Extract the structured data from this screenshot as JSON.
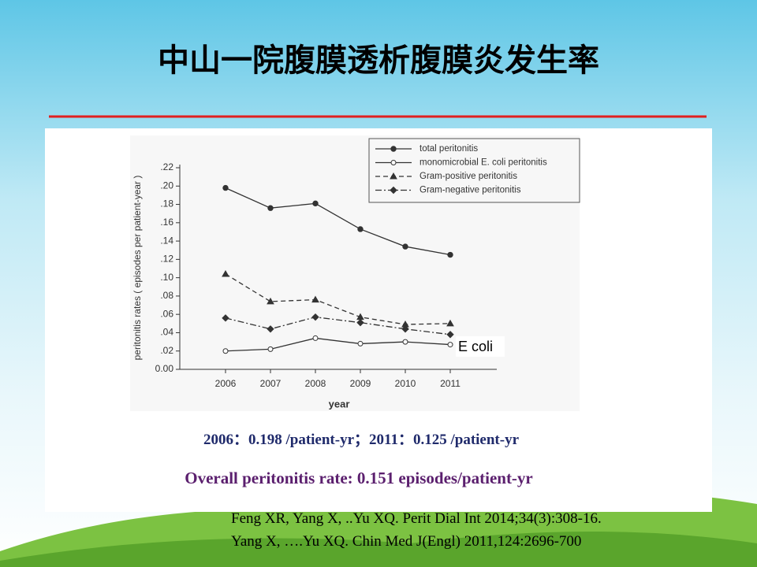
{
  "slide": {
    "title": "中山一院腹膜透析腹膜炎发生率",
    "summary": "2006：0.198 /patient-yr；2011：0.125 /patient-yr",
    "overall": "Overall peritonitis rate: 0.151 episodes/patient-yr",
    "references": [
      "Feng XR, Yang X, ..Yu XQ. Perit Dial Int 2014;34(3):308-16.",
      "Yang X, ….Yu XQ. Chin Med J(Engl) 2011,124:2696-700"
    ]
  },
  "chart_data": {
    "type": "line",
    "x_label": "year",
    "y_label": "peritonitis rates ( episodes per patient-year )",
    "annotation": "E coli",
    "categories": [
      "2006",
      "2007",
      "2008",
      "2009",
      "2010",
      "2011"
    ],
    "ylim": [
      0,
      0.22
    ],
    "yticks": [
      {
        "value": 0,
        "label": "0.00"
      },
      {
        "value": 0.02,
        "label": ".02"
      },
      {
        "value": 0.04,
        "label": ".04"
      },
      {
        "value": 0.06,
        "label": ".06"
      },
      {
        "value": 0.08,
        "label": ".08"
      },
      {
        "value": 0.1,
        "label": ".10"
      },
      {
        "value": 0.12,
        "label": ".12"
      },
      {
        "value": 0.14,
        "label": ".14"
      },
      {
        "value": 0.16,
        "label": ".16"
      },
      {
        "value": 0.18,
        "label": ".18"
      },
      {
        "value": 0.2,
        "label": ".20"
      },
      {
        "value": 0.22,
        "label": ".22"
      }
    ],
    "series": [
      {
        "name": "total peritonitis",
        "color": "#333333",
        "marker": "filled-circle",
        "line_style": "solid",
        "values": [
          0.198,
          0.176,
          0.181,
          0.153,
          0.134,
          0.125
        ]
      },
      {
        "name": "monomicrobial E. coli peritonitis",
        "color": "#333333",
        "marker": "open-circle",
        "line_style": "solid",
        "values": [
          0.02,
          0.022,
          0.034,
          0.028,
          0.03,
          0.027
        ]
      },
      {
        "name": "Gram-positive peritonitis",
        "color": "#333333",
        "marker": "triangle",
        "line_style": "dashed",
        "values": [
          0.104,
          0.074,
          0.076,
          0.057,
          0.049,
          0.05
        ]
      },
      {
        "name": "Gram-negative peritonitis",
        "color": "#333333",
        "marker": "diamond",
        "line_style": "dashdot",
        "values": [
          0.056,
          0.044,
          0.057,
          0.051,
          0.044,
          0.038
        ]
      }
    ],
    "legend": "upper-right"
  }
}
